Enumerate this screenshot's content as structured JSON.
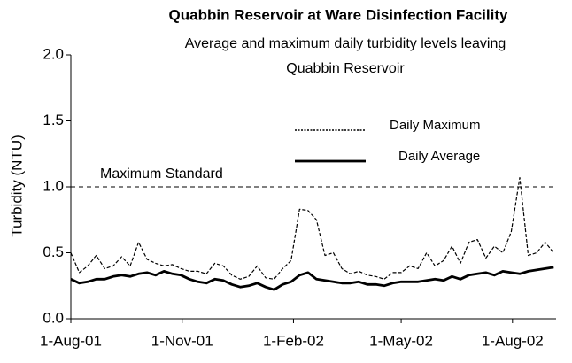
{
  "chart_data": {
    "type": "line",
    "title": "Quabbin Reservoir at Ware Disinfection Facility",
    "subtitle": [
      "Average and maximum daily turbidity levels leaving",
      "Quabbin Reservoir"
    ],
    "y_label": "Turbidity (NTU)",
    "x": [
      "2001-08-01",
      "2001-08-08",
      "2001-08-15",
      "2001-08-22",
      "2001-08-29",
      "2001-09-05",
      "2001-09-12",
      "2001-09-19",
      "2001-09-26",
      "2001-10-03",
      "2001-10-10",
      "2001-10-17",
      "2001-10-24",
      "2001-10-31",
      "2001-11-07",
      "2001-11-14",
      "2001-11-21",
      "2001-11-28",
      "2001-12-05",
      "2001-12-12",
      "2001-12-19",
      "2001-12-26",
      "2002-01-02",
      "2002-01-09",
      "2002-01-16",
      "2002-01-23",
      "2002-01-30",
      "2002-02-06",
      "2002-02-13",
      "2002-02-20",
      "2002-02-27",
      "2002-03-06",
      "2002-03-13",
      "2002-03-20",
      "2002-03-27",
      "2002-04-03",
      "2002-04-10",
      "2002-04-17",
      "2002-04-24",
      "2002-05-01",
      "2002-05-08",
      "2002-05-15",
      "2002-05-22",
      "2002-05-29",
      "2002-06-05",
      "2002-06-12",
      "2002-06-19",
      "2002-06-26",
      "2002-07-03",
      "2002-07-10",
      "2002-07-17",
      "2002-07-24",
      "2002-07-31",
      "2002-08-07",
      "2002-08-14",
      "2002-08-21",
      "2002-08-28",
      "2002-09-04"
    ],
    "series": [
      {
        "name": "Daily Maximum",
        "color": "#000000",
        "style": "dashed",
        "values": [
          0.5,
          0.35,
          0.4,
          0.48,
          0.38,
          0.4,
          0.47,
          0.4,
          0.58,
          0.45,
          0.42,
          0.4,
          0.41,
          0.38,
          0.36,
          0.36,
          0.34,
          0.42,
          0.4,
          0.33,
          0.3,
          0.32,
          0.4,
          0.31,
          0.3,
          0.38,
          0.44,
          0.83,
          0.82,
          0.75,
          0.48,
          0.5,
          0.38,
          0.34,
          0.36,
          0.33,
          0.32,
          0.3,
          0.35,
          0.35,
          0.4,
          0.38,
          0.5,
          0.4,
          0.44,
          0.55,
          0.42,
          0.58,
          0.6,
          0.46,
          0.55,
          0.5,
          0.66,
          1.07,
          0.48,
          0.5,
          0.58,
          0.5
        ]
      },
      {
        "name": "Daily Average",
        "color": "#000000",
        "style": "solid",
        "values": [
          0.3,
          0.27,
          0.28,
          0.3,
          0.3,
          0.32,
          0.33,
          0.32,
          0.34,
          0.35,
          0.33,
          0.36,
          0.34,
          0.33,
          0.3,
          0.28,
          0.27,
          0.3,
          0.29,
          0.26,
          0.24,
          0.25,
          0.27,
          0.24,
          0.22,
          0.26,
          0.28,
          0.33,
          0.35,
          0.3,
          0.29,
          0.28,
          0.27,
          0.27,
          0.28,
          0.26,
          0.26,
          0.25,
          0.27,
          0.28,
          0.28,
          0.28,
          0.29,
          0.3,
          0.29,
          0.32,
          0.3,
          0.33,
          0.34,
          0.35,
          0.33,
          0.36,
          0.35,
          0.34,
          0.36,
          0.37,
          0.38,
          0.39
        ]
      }
    ],
    "reference_line": {
      "value": 1.0,
      "label": "Maximum Standard"
    },
    "xlim": [
      "2001-08-01",
      "2002-09-06"
    ],
    "xticks": [
      {
        "value": "2001-08-01",
        "label": "1-Aug-01"
      },
      {
        "value": "2001-11-01",
        "label": "1-Nov-01"
      },
      {
        "value": "2002-02-01",
        "label": "1-Feb-02"
      },
      {
        "value": "2002-05-01",
        "label": "1-May-02"
      },
      {
        "value": "2002-08-01",
        "label": "1-Aug-02"
      }
    ],
    "ylim": [
      0,
      2
    ],
    "yticks": [
      {
        "value": 0,
        "label": "0.0"
      },
      {
        "value": 0.5,
        "label": "0.5"
      },
      {
        "value": 1,
        "label": "1.0"
      },
      {
        "value": 1.5,
        "label": "1.5"
      },
      {
        "value": 2,
        "label": "2.0"
      }
    ],
    "grid": false
  }
}
